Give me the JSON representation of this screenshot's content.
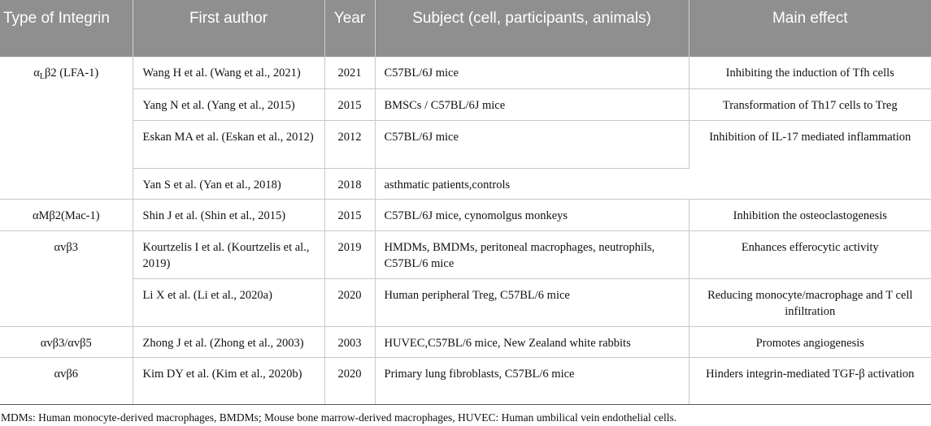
{
  "headers": {
    "type": "Type of Integrin",
    "author": "First author",
    "year": "Year",
    "subject": "Subject (cell, participants, animals)",
    "effect": "Main effect"
  },
  "groups": {
    "lfa1": {
      "prefix": "α",
      "sub": "L",
      "suffix": "β2 (LFA-1)"
    },
    "mac1": "αMβ2(Mac-1)",
    "avb3": "αvβ3",
    "avb3avb5": "αvβ3/αvβ5",
    "avb6": "αvβ6"
  },
  "rows": [
    {
      "author": "Wang H et al. (Wang et al., 2021)",
      "year": "2021",
      "subject": "C57BL/6J mice",
      "effect": "Inhibiting the induction of Tfh cells"
    },
    {
      "author": "Yang N et al. (Yang et al., 2015)",
      "year": "2015",
      "subject": "BMSCs / C57BL/6J mice",
      "effect": "Transformation of Th17 cells to Treg"
    },
    {
      "author": "Eskan MA et al. (Eskan et al., 2012)",
      "year": "2012",
      "subject": "C57BL/6J mice",
      "effect": "Inhibition of IL-17 mediated inflammation"
    },
    {
      "author": "Yan S et al. (Yan et al., 2018)",
      "year": "2018",
      "subject": "asthmatic patients,controls"
    },
    {
      "author": "Shin J et al. (Shin et al., 2015)",
      "year": "2015",
      "subject": "C57BL/6J mice, cynomolgus monkeys",
      "effect": "Inhibition the osteoclastogenesis"
    },
    {
      "author": "Kourtzelis I et al. (Kourtzelis et al., 2019)",
      "year": "2019",
      "subject": "HMDMs, BMDMs, peritoneal macrophages, neutrophils, C57BL/6 mice",
      "effect": "Enhances efferocytic activity"
    },
    {
      "author": "Li X et al. (Li et al., 2020a)",
      "year": "2020",
      "subject": "Human peripheral Treg, C57BL/6 mice",
      "effect": "Reducing monocyte/macrophage and T cell infiltration"
    },
    {
      "author": "Zhong J et al. (Zhong et al., 2003)",
      "year": "2003",
      "subject": "HUVEC,C57BL/6 mice, New Zealand white rabbits",
      "effect": "Promotes angiogenesis"
    },
    {
      "author": "Kim DY et al. (Kim et al., 2020b)",
      "year": "2020",
      "subject": "Primary lung fibroblasts, C57BL/6 mice",
      "effect": "Hinders integrin-mediated TGF-β activation"
    }
  ],
  "footnote": "MDMs: Human monocyte-derived macrophages, BMDMs; Mouse bone marrow-derived macrophages, HUVEC: Human umbilical vein endothelial cells."
}
